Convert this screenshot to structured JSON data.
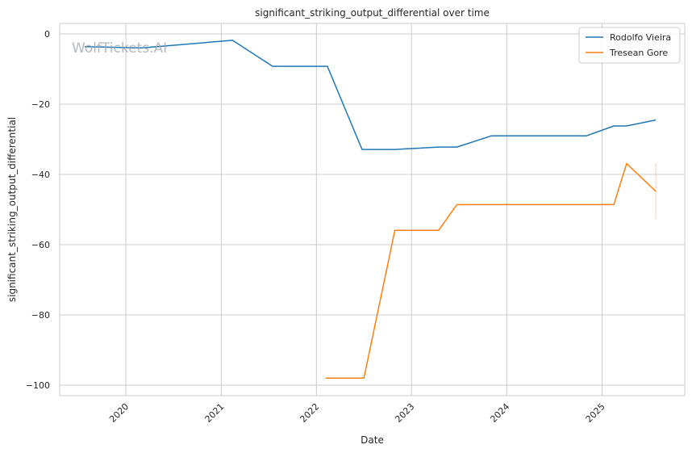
{
  "chart_data": {
    "type": "line",
    "title": "significant_striking_output_differential over time",
    "xlabel": "Date",
    "ylabel": "significant_striking_output_differential",
    "watermark": "WolfTickets.AI",
    "xlim": [
      "2019-04-22",
      "2025-11-14"
    ],
    "ylim": [
      -103,
      3
    ],
    "x_ticks": [
      "2020-01-01",
      "2021-01-01",
      "2022-01-01",
      "2023-01-01",
      "2024-01-01",
      "2025-01-01"
    ],
    "x_tick_labels": [
      "2020",
      "2021",
      "2022",
      "2023",
      "2024",
      "2025"
    ],
    "y_ticks": [
      0,
      -20,
      -40,
      -60,
      -80,
      -100
    ],
    "y_tick_labels": [
      "0",
      "−20",
      "−40",
      "−60",
      "−80",
      "−100"
    ],
    "grid": true,
    "legend_position": "top-right",
    "series": [
      {
        "name": "Rodolfo Vieira",
        "color": "#1f77b4",
        "x": [
          "2019-07-27",
          "2020-03-01",
          "2021-02-13",
          "2021-07-17",
          "2022-02-12",
          "2022-06-25",
          "2022-10-29",
          "2023-04-15",
          "2023-06-24",
          "2023-11-04",
          "2024-11-02",
          "2025-02-15",
          "2025-04-05",
          "2025-07-26"
        ],
        "y": [
          -3.6,
          -4.0,
          -1.8,
          -9.2,
          -9.2,
          -32.9,
          -32.9,
          -32.2,
          -32.2,
          -29.0,
          -29.0,
          -26.2,
          -26.2,
          -24.5
        ]
      },
      {
        "name": "Tresean Gore",
        "color": "#ff7f0e",
        "x": [
          "2022-02-05",
          "2022-07-02",
          "2022-10-29",
          "2023-04-15",
          "2023-06-24",
          "2024-11-02",
          "2025-02-15",
          "2025-04-05",
          "2025-07-26"
        ],
        "y": [
          -98.0,
          -98.0,
          -55.9,
          -55.9,
          -48.6,
          -48.6,
          -48.6,
          -36.9,
          -44.8
        ]
      }
    ],
    "error_bar": {
      "series": "Tresean Gore",
      "x": "2025-07-26",
      "low": -52.8,
      "high": -36.8
    }
  }
}
